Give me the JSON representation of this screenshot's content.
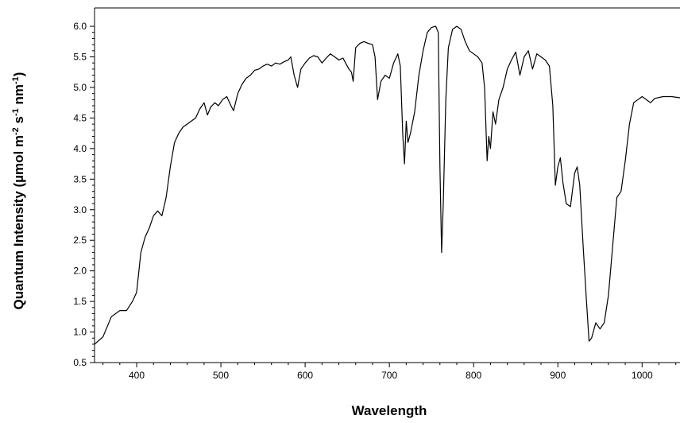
{
  "chart_data": {
    "type": "line",
    "title": "",
    "xlabel": "Wavelength",
    "ylabel": {
      "parts": [
        {
          "text": "Quantum  Intensity (µmol m",
          "sup": false
        },
        {
          "text": "-2",
          "sup": true
        },
        {
          "text": " s",
          "sup": false
        },
        {
          "text": "-1",
          "sup": true
        },
        {
          "text": " nm",
          "sup": false
        },
        {
          "text": "-1",
          "sup": true
        },
        {
          "text": ")",
          "sup": false
        }
      ]
    },
    "xlim": [
      350,
      1045
    ],
    "ylim": [
      0.5,
      6.3
    ],
    "xticks": [
      400,
      500,
      600,
      700,
      800,
      900,
      1000
    ],
    "xtick_labels": [
      "400",
      "500",
      "600",
      "700",
      "800",
      "900",
      "1000"
    ],
    "yticks": [
      0.5,
      1.0,
      1.5,
      2.0,
      2.5,
      3.0,
      3.5,
      4.0,
      4.5,
      5.0,
      5.5,
      6.0
    ],
    "ytick_labels": [
      "0.5",
      "1.0",
      "1.5",
      "2.0",
      "2.5",
      "3.0",
      "3.5",
      "4.0",
      "4.5",
      "5.0",
      "5.5",
      "6.0"
    ],
    "grid": false,
    "legend": "none",
    "series": [
      {
        "color": "#000000",
        "points": [
          [
            350,
            0.8
          ],
          [
            360,
            0.92
          ],
          [
            370,
            1.25
          ],
          [
            380,
            1.35
          ],
          [
            388,
            1.35
          ],
          [
            395,
            1.5
          ],
          [
            400,
            1.65
          ],
          [
            405,
            2.3
          ],
          [
            410,
            2.55
          ],
          [
            415,
            2.7
          ],
          [
            420,
            2.9
          ],
          [
            425,
            2.98
          ],
          [
            430,
            2.9
          ],
          [
            435,
            3.2
          ],
          [
            440,
            3.7
          ],
          [
            445,
            4.1
          ],
          [
            450,
            4.25
          ],
          [
            455,
            4.35
          ],
          [
            460,
            4.4
          ],
          [
            465,
            4.45
          ],
          [
            470,
            4.5
          ],
          [
            475,
            4.65
          ],
          [
            480,
            4.75
          ],
          [
            484,
            4.55
          ],
          [
            488,
            4.68
          ],
          [
            493,
            4.75
          ],
          [
            497,
            4.7
          ],
          [
            502,
            4.8
          ],
          [
            507,
            4.85
          ],
          [
            512,
            4.7
          ],
          [
            515,
            4.62
          ],
          [
            520,
            4.9
          ],
          [
            525,
            5.05
          ],
          [
            530,
            5.15
          ],
          [
            535,
            5.2
          ],
          [
            540,
            5.28
          ],
          [
            545,
            5.3
          ],
          [
            550,
            5.35
          ],
          [
            555,
            5.38
          ],
          [
            560,
            5.35
          ],
          [
            565,
            5.4
          ],
          [
            570,
            5.38
          ],
          [
            575,
            5.42
          ],
          [
            580,
            5.45
          ],
          [
            583,
            5.5
          ],
          [
            587,
            5.2
          ],
          [
            591,
            5.0
          ],
          [
            595,
            5.3
          ],
          [
            600,
            5.4
          ],
          [
            605,
            5.48
          ],
          [
            610,
            5.52
          ],
          [
            615,
            5.5
          ],
          [
            620,
            5.4
          ],
          [
            625,
            5.48
          ],
          [
            630,
            5.55
          ],
          [
            635,
            5.5
          ],
          [
            640,
            5.45
          ],
          [
            645,
            5.48
          ],
          [
            648,
            5.4
          ],
          [
            652,
            5.3
          ],
          [
            655,
            5.25
          ],
          [
            657,
            5.1
          ],
          [
            660,
            5.65
          ],
          [
            665,
            5.72
          ],
          [
            670,
            5.75
          ],
          [
            675,
            5.72
          ],
          [
            680,
            5.7
          ],
          [
            683,
            5.5
          ],
          [
            686,
            4.8
          ],
          [
            690,
            5.1
          ],
          [
            695,
            5.2
          ],
          [
            700,
            5.15
          ],
          [
            705,
            5.4
          ],
          [
            710,
            5.55
          ],
          [
            713,
            5.35
          ],
          [
            716,
            4.2
          ],
          [
            718,
            3.75
          ],
          [
            720,
            4.45
          ],
          [
            722,
            4.1
          ],
          [
            725,
            4.25
          ],
          [
            730,
            4.6
          ],
          [
            735,
            5.2
          ],
          [
            740,
            5.6
          ],
          [
            745,
            5.9
          ],
          [
            750,
            5.98
          ],
          [
            755,
            6.0
          ],
          [
            758,
            5.9
          ],
          [
            760,
            3.7
          ],
          [
            762,
            2.3
          ],
          [
            764,
            3.1
          ],
          [
            767,
            4.8
          ],
          [
            770,
            5.65
          ],
          [
            775,
            5.95
          ],
          [
            780,
            6.0
          ],
          [
            785,
            5.95
          ],
          [
            790,
            5.75
          ],
          [
            795,
            5.6
          ],
          [
            800,
            5.55
          ],
          [
            805,
            5.5
          ],
          [
            810,
            5.4
          ],
          [
            813,
            5.0
          ],
          [
            816,
            3.8
          ],
          [
            818,
            4.2
          ],
          [
            820,
            4.0
          ],
          [
            823,
            4.6
          ],
          [
            826,
            4.4
          ],
          [
            830,
            4.8
          ],
          [
            835,
            5.0
          ],
          [
            840,
            5.3
          ],
          [
            845,
            5.45
          ],
          [
            850,
            5.58
          ],
          [
            855,
            5.2
          ],
          [
            860,
            5.5
          ],
          [
            865,
            5.6
          ],
          [
            870,
            5.3
          ],
          [
            875,
            5.55
          ],
          [
            880,
            5.5
          ],
          [
            885,
            5.45
          ],
          [
            890,
            5.35
          ],
          [
            894,
            4.7
          ],
          [
            897,
            3.4
          ],
          [
            900,
            3.7
          ],
          [
            903,
            3.85
          ],
          [
            906,
            3.45
          ],
          [
            910,
            3.1
          ],
          [
            915,
            3.05
          ],
          [
            920,
            3.6
          ],
          [
            923,
            3.7
          ],
          [
            926,
            3.4
          ],
          [
            930,
            2.4
          ],
          [
            934,
            1.5
          ],
          [
            937,
            0.85
          ],
          [
            940,
            0.9
          ],
          [
            945,
            1.15
          ],
          [
            950,
            1.05
          ],
          [
            955,
            1.15
          ],
          [
            960,
            1.6
          ],
          [
            965,
            2.4
          ],
          [
            970,
            3.2
          ],
          [
            975,
            3.3
          ],
          [
            980,
            3.8
          ],
          [
            985,
            4.4
          ],
          [
            990,
            4.75
          ],
          [
            995,
            4.8
          ],
          [
            1000,
            4.85
          ],
          [
            1005,
            4.8
          ],
          [
            1010,
            4.75
          ],
          [
            1015,
            4.82
          ],
          [
            1025,
            4.85
          ],
          [
            1035,
            4.85
          ],
          [
            1045,
            4.83
          ]
        ]
      }
    ]
  }
}
